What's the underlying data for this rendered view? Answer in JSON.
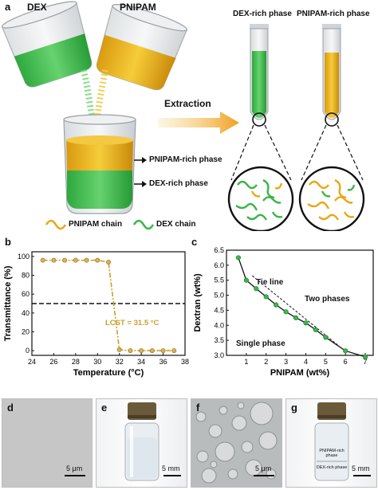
{
  "panel_a": {
    "letter": "a",
    "beaker_left_label": "DEX",
    "beaker_right_label": "PNIPAM",
    "extraction_label": "Extraction",
    "tube_left_label": "DEX-rich phase",
    "tube_right_label": "PNIPAM-rich phase",
    "layer_top_label": "PNIPAM-rich phase",
    "layer_bottom_label": "DEX-rich phase",
    "legend_pnipam": "PNIPAM chain",
    "legend_dex": "DEX chain",
    "colors": {
      "pnipam": "#e8a917",
      "dex": "#3cb54a",
      "arrow": "#f0a020"
    }
  },
  "panel_b": {
    "letter": "b",
    "lcst_label": "LCST = 31.5 °C"
  },
  "panel_c": {
    "letter": "c",
    "tie_line_label": "Tie line",
    "two_phases_label": "Two phases",
    "single_phase_label": "Single phase"
  },
  "panel_d": {
    "letter": "d",
    "scale": "5 μm"
  },
  "panel_e": {
    "letter": "e",
    "scale": "5 mm"
  },
  "panel_f": {
    "letter": "f",
    "scale": "5 μm"
  },
  "panel_g": {
    "letter": "g",
    "scale": "5 mm",
    "top_phase": "PNIPAM-rich phase",
    "bottom_phase": "DEX-rich phase"
  },
  "chart_data": [
    {
      "type": "line",
      "xlabel": "Temperature (°C)",
      "ylabel": "Transmittance (%)",
      "xlim": [
        24,
        38
      ],
      "ylim": [
        -5,
        105
      ],
      "xticks": [
        24,
        26,
        28,
        30,
        32,
        34,
        36,
        38
      ],
      "yticks": [
        0,
        20,
        40,
        60,
        80,
        100
      ],
      "series": [
        {
          "x": [
            25,
            26,
            27,
            28,
            29,
            30,
            31,
            32,
            33,
            34,
            35,
            36,
            37
          ],
          "y": [
            96,
            96,
            96,
            96,
            96,
            96,
            94,
            1,
            0,
            0,
            0,
            0,
            0
          ]
        }
      ],
      "reference_line_y": 50,
      "color": "#c8a02a"
    },
    {
      "type": "scatter",
      "xlabel": "PNIPAM (wt%)",
      "ylabel": "Dextran (wt%)",
      "xlim": [
        0,
        7.4
      ],
      "ylim": [
        3.0,
        6.5
      ],
      "xticks": [
        1,
        2,
        3,
        4,
        5,
        6,
        7
      ],
      "yticks": [
        3.0,
        3.5,
        4.0,
        4.5,
        5.0,
        5.5,
        6.0,
        6.5
      ],
      "series": [
        {
          "x": [
            0.6,
            1.0,
            1.5,
            2.0,
            2.5,
            3.0,
            3.5,
            4.0,
            4.5,
            5.0,
            6.0,
            7.0
          ],
          "y": [
            6.25,
            5.5,
            5.22,
            4.95,
            4.68,
            4.45,
            4.25,
            4.08,
            3.85,
            3.6,
            3.15,
            2.95
          ]
        }
      ],
      "tie_line": {
        "x": [
          1.3,
          5.6
        ],
        "y": [
          5.65,
          3.35
        ]
      },
      "color": "#3cb54a"
    }
  ]
}
